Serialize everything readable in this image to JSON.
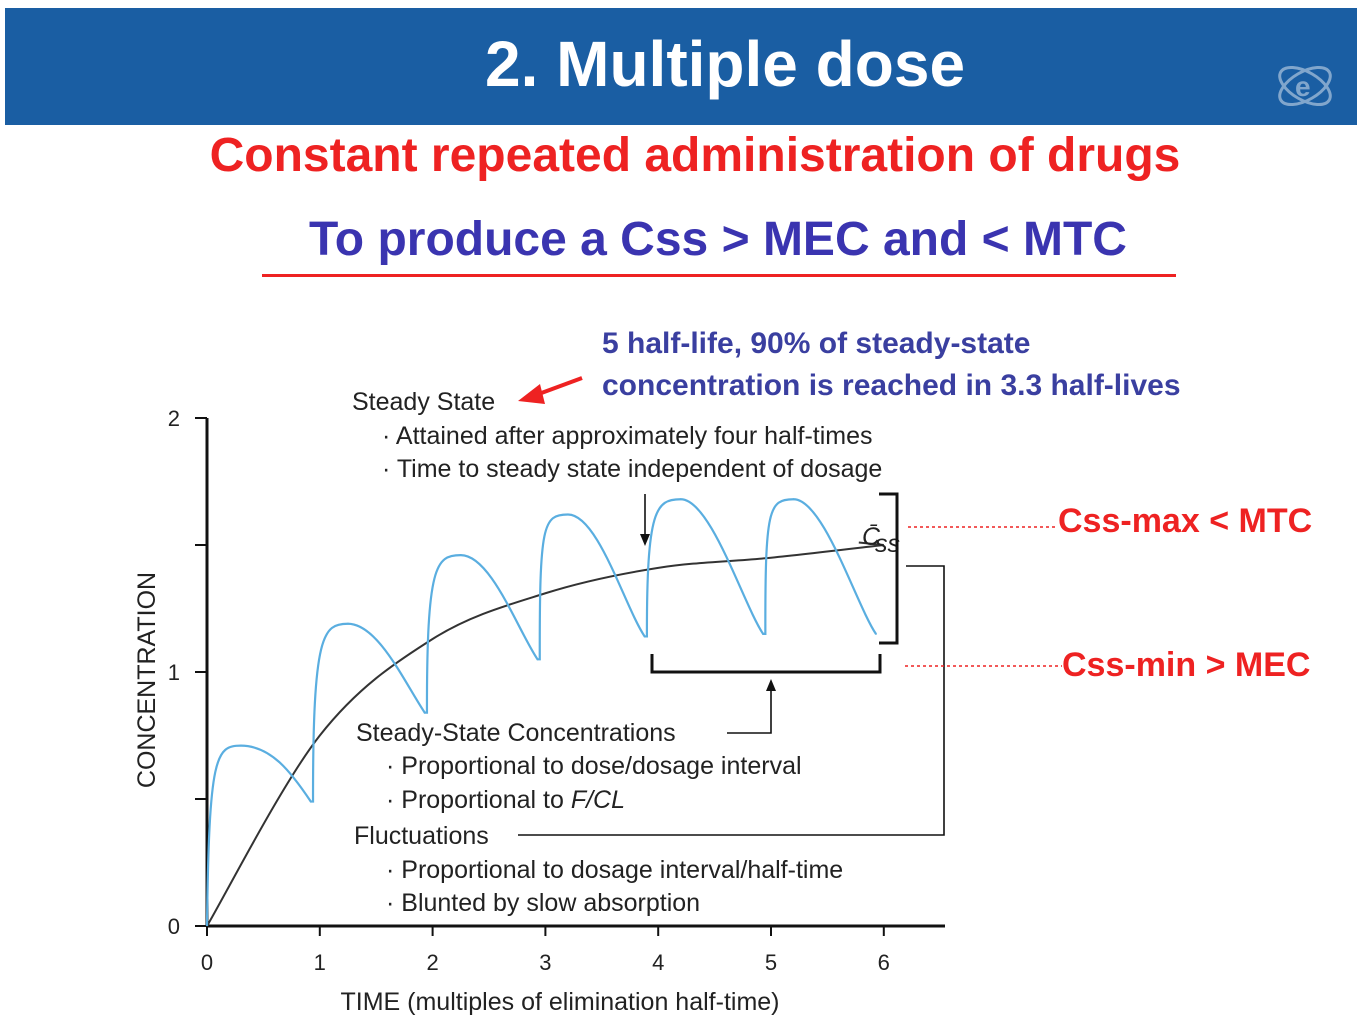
{
  "header": {
    "title": "2.  Multiple dose"
  },
  "subtitle": {
    "line1": "Constant repeated administration of drugs",
    "line2": "To produce a Css > MEC and < MTC"
  },
  "annotations": {
    "half_life_line1": "5 half-life, 90% of steady-state",
    "half_life_line2": "concentration is reached in 3.3 half-lives",
    "css_max": "Css-max < MTC",
    "css_min": "Css-min > MEC"
  },
  "colors": {
    "header_bg": "#1a5ea3",
    "red": "#ee2222",
    "blue_text": "#3a34b0",
    "oscillation_curve": "#5aaee0",
    "mean_curve": "#333333"
  },
  "icons": {
    "logo": "swirl-logo-icon",
    "arrow": "red-arrow-icon"
  },
  "chart_data": {
    "type": "line",
    "xlabel": "TIME (multiples of elimination half-time)",
    "ylabel": "CONCENTRATION",
    "x_ticks": [
      "0",
      "1",
      "2",
      "3",
      "4",
      "5",
      "6"
    ],
    "y_ticks": [
      "0",
      "1",
      "2"
    ],
    "xlim": [
      0,
      6.5
    ],
    "ylim": [
      0,
      2
    ],
    "dose_interval": 1,
    "series": [
      {
        "name": "",
        "type": "oscillating",
        "peaks": [
          {
            "x": 0.3,
            "y": 0.71
          },
          {
            "x": 1.25,
            "y": 1.19
          },
          {
            "x": 2.25,
            "y": 1.46
          },
          {
            "x": 3.2,
            "y": 1.62
          },
          {
            "x": 4.2,
            "y": 1.68
          },
          {
            "x": 5.2,
            "y": 1.68
          }
        ],
        "troughs": [
          {
            "x": 0.92,
            "y": 0.49
          },
          {
            "x": 1.93,
            "y": 0.84
          },
          {
            "x": 2.93,
            "y": 1.05
          },
          {
            "x": 3.88,
            "y": 1.14
          },
          {
            "x": 4.93,
            "y": 1.15
          },
          {
            "x": 5.93,
            "y": 1.15
          }
        ]
      },
      {
        "name": "",
        "type": "mean",
        "points": [
          {
            "x": 0,
            "y": 0
          },
          {
            "x": 1,
            "y": 0.75
          },
          {
            "x": 2,
            "y": 1.13
          },
          {
            "x": 3,
            "y": 1.31
          },
          {
            "x": 4,
            "y": 1.41
          },
          {
            "x": 5,
            "y": 1.45
          },
          {
            "x": 6,
            "y": 1.5
          }
        ]
      }
    ],
    "css_label": "C̄",
    "css_subscript": "ss",
    "text_annotations": {
      "steady_state_title": "Steady State",
      "steady_state_bullet1": "· Attained after approximately four half-times",
      "steady_state_bullet2": "· Time to steady state independent of dosage",
      "ssc_title": "Steady-State Concentrations",
      "ssc_bullet1": "· Proportional to dose/dosage interval",
      "ssc_bullet2_prefix": "· Proportional to ",
      "ssc_bullet2_italic": "F/CL",
      "fluct_title": "Fluctuations",
      "fluct_bullet1": "· Proportional to dosage interval/half-time",
      "fluct_bullet2": "· Blunted by slow absorption"
    }
  }
}
